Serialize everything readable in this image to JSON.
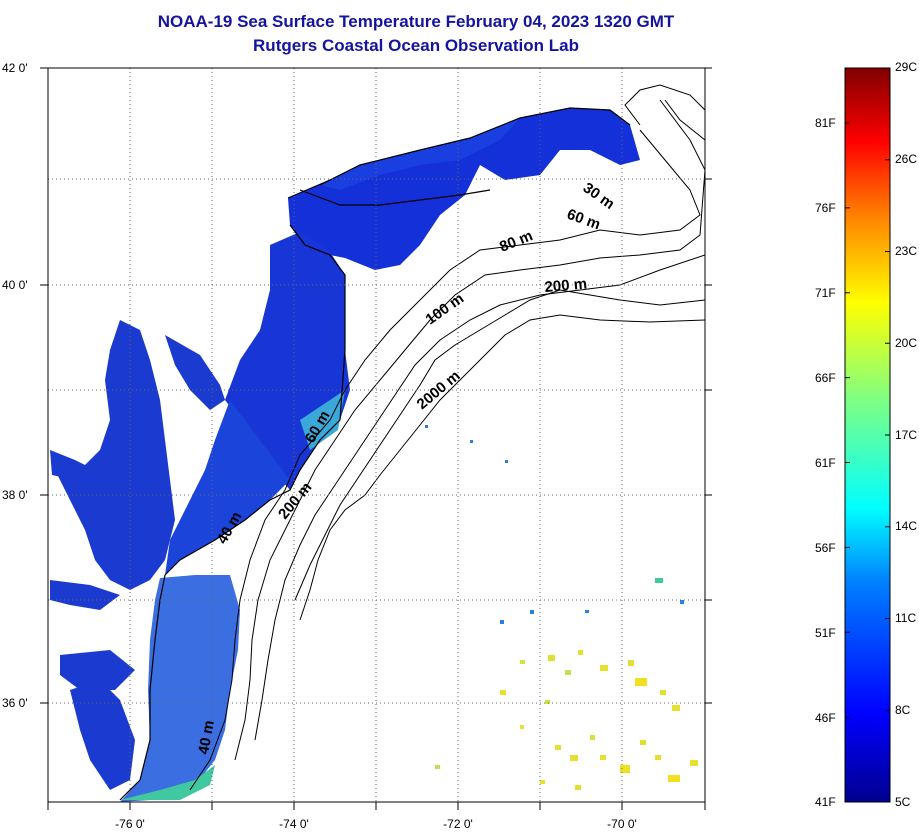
{
  "title": {
    "line1": "NOAA-19 Sea Surface Temperature February 04, 2023 1320 GMT",
    "line2": "Rutgers Coastal Ocean Observation Lab"
  },
  "map": {
    "lat_ticks": [
      "42 0'",
      "40 0'",
      "38 0'",
      "36 0'"
    ],
    "lon_ticks": [
      "-76 0'",
      "-74 0'",
      "-72 0'",
      "-70 0'"
    ],
    "lon_range": [
      -77.0,
      -69.0
    ],
    "lat_range": [
      35.0,
      42.0
    ],
    "depth_labels": [
      {
        "text": "30 m"
      },
      {
        "text": "60 m"
      },
      {
        "text": "80 m"
      },
      {
        "text": "200 m"
      },
      {
        "text": "100 m"
      },
      {
        "text": "2000 m"
      },
      {
        "text": "60 m"
      },
      {
        "text": "40 m"
      },
      {
        "text": "200 m"
      },
      {
        "text": "40 m"
      }
    ]
  },
  "colorbar": {
    "celsius": [
      "29C",
      "26C",
      "23C",
      "20C",
      "17C",
      "14C",
      "11C",
      "8C",
      "5C"
    ],
    "fahrenheit": [
      "81F",
      "76F",
      "71F",
      "66F",
      "61F",
      "56F",
      "51F",
      "46F",
      "41F"
    ],
    "colors": [
      "#00008f",
      "#0000ff",
      "#0080ff",
      "#00ffff",
      "#80ff80",
      "#ffff00",
      "#ff8000",
      "#ff0000",
      "#800000"
    ]
  },
  "legend_colors": {
    "land": "#ffffff",
    "bay_water": "#1a3fd0",
    "ocean_cold": "#1530d8",
    "warm_spots": "#e8e030"
  }
}
